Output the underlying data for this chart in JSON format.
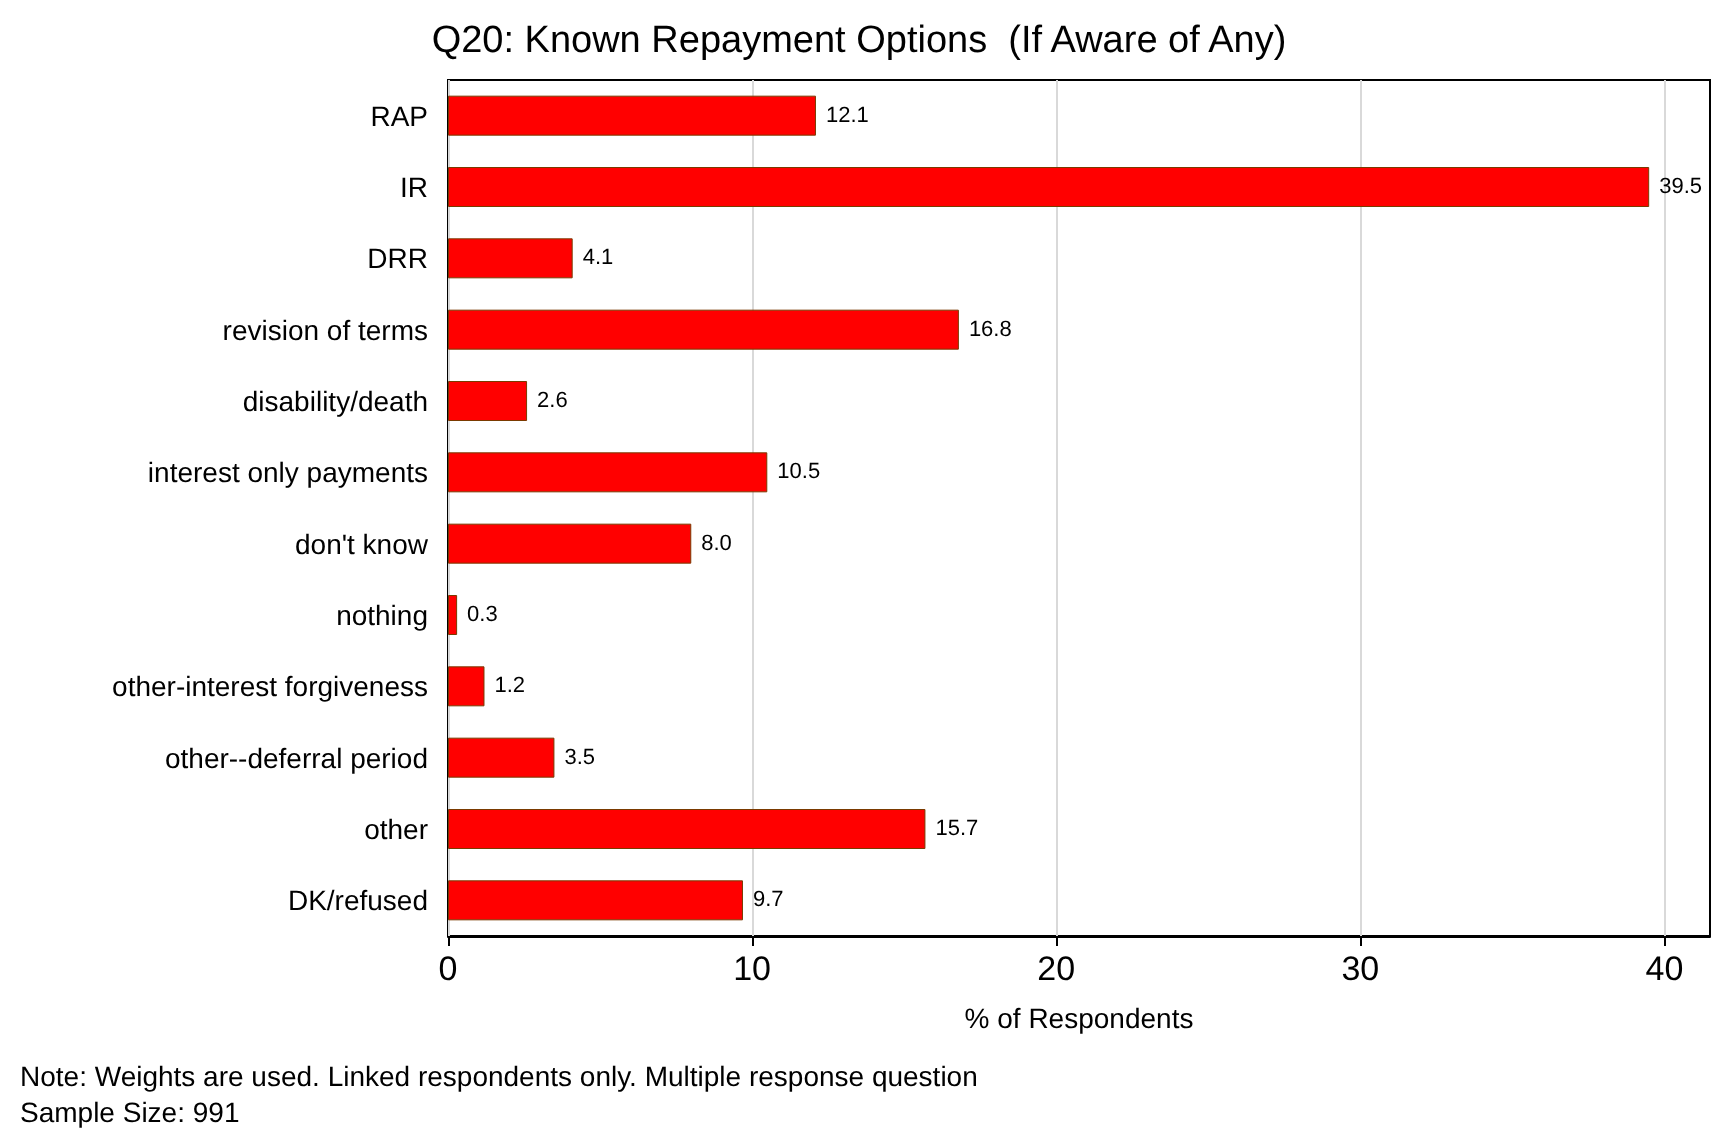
{
  "chart_data": {
    "type": "bar",
    "orientation": "horizontal",
    "title": "Q20: Known Repayment Options  (If Aware of Any)",
    "xlabel": "% of Respondents",
    "categories": [
      "RAP",
      "IR",
      "DRR",
      "revision of terms",
      "disability/death",
      "interest only payments",
      "don't know",
      "nothing",
      "other-interest forgiveness",
      "other--deferral period",
      "other",
      "DK/refused"
    ],
    "values": [
      12.1,
      39.5,
      4.1,
      16.8,
      2.6,
      10.5,
      8.0,
      0.3,
      1.2,
      3.5,
      15.7,
      9.7
    ],
    "value_labels": [
      "12.1",
      "39.5",
      "4.1",
      "16.8",
      "2.6",
      "10.5",
      "8.0",
      "0.3",
      "1.2",
      "3.5",
      "15.7",
      "9.7"
    ],
    "color": "#ff0000",
    "xlim": [
      0,
      41.5
    ],
    "xticks": [
      0,
      10,
      20,
      30,
      40
    ],
    "grid": "x",
    "annotations": [
      "Note: Weights are used. Linked respondents only. Multiple response question",
      "Sample Size: 991"
    ]
  }
}
